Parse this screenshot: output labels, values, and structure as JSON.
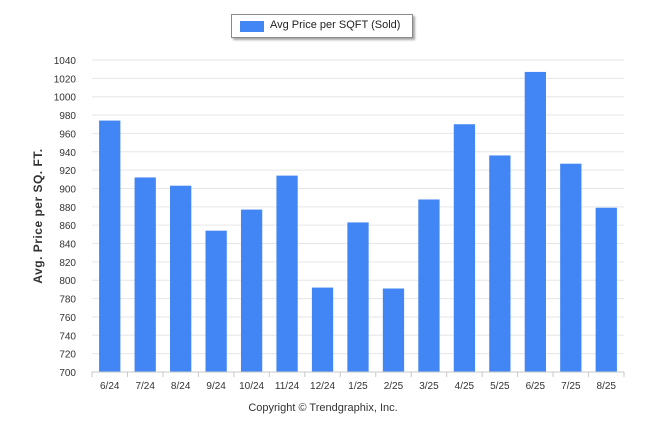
{
  "colors": {
    "bar": "#4285f4",
    "grid": "#e6e6e6",
    "axis": "#c8c8c8",
    "text": "#333333"
  },
  "chart_data": {
    "type": "bar",
    "categories": [
      "6/24",
      "7/24",
      "8/24",
      "9/24",
      "10/24",
      "11/24",
      "12/24",
      "1/25",
      "2/25",
      "3/25",
      "4/25",
      "5/25",
      "6/25",
      "7/25",
      "8/25"
    ],
    "series": [
      {
        "name": "Avg Price per SQFT (Sold)",
        "values": [
          974,
          912,
          903,
          854,
          877,
          914,
          792,
          863,
          791,
          888,
          970,
          936,
          1027,
          927,
          879
        ]
      }
    ],
    "ylabel": "Avg. Price per SQ. FT.",
    "xlabel": "",
    "ylim": [
      700,
      1040
    ],
    "yticks": [
      700,
      720,
      740,
      760,
      780,
      800,
      820,
      840,
      860,
      880,
      900,
      920,
      940,
      960,
      980,
      1000,
      1020,
      1040
    ],
    "grid": true,
    "legend_position": "top-center"
  },
  "legend": {
    "label": "Avg Price per SQFT (Sold)",
    "icon": "bar-swatch-icon"
  },
  "footer": {
    "copyright": "Copyright © Trendgraphix, Inc."
  }
}
